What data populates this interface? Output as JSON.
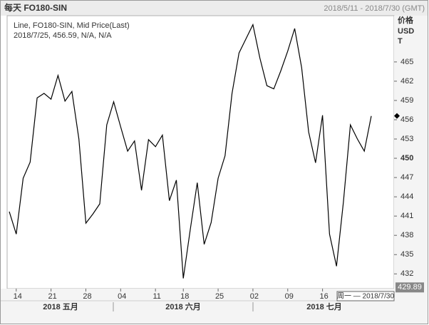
{
  "chart_data": {
    "type": "line",
    "title": "每天 FO180-SIN",
    "date_range": "2018/5/11 - 2018/7/30 (GMT)",
    "legend_line1": "Line, FO180-SIN, Mid Price(Last)",
    "legend_line2": "2018/7/25, 456.59, N/A, N/A",
    "axis_label": [
      "价格",
      "USD",
      "T"
    ],
    "categories": [
      null,
      "14",
      null,
      null,
      null,
      null,
      "21",
      null,
      null,
      null,
      null,
      "28",
      null,
      null,
      null,
      null,
      "04",
      null,
      null,
      null,
      null,
      "11",
      null,
      null,
      null,
      "18",
      null,
      null,
      null,
      null,
      "25",
      null,
      null,
      null,
      null,
      "02",
      null,
      null,
      null,
      null,
      "09",
      null,
      null,
      null,
      null,
      "16",
      null,
      null,
      null,
      null,
      null,
      null,
      null
    ],
    "month_labels": [
      "2018 五月",
      "2018 六月",
      "2018 七月"
    ],
    "series": [
      {
        "name": "FO180-SIN",
        "color": "#000000",
        "values": [
          441.7,
          438.2,
          446.9,
          449.4,
          459.4,
          460.1,
          459.2,
          462.9,
          458.9,
          460.4,
          453.0,
          439.9,
          441.3,
          442.9,
          455.2,
          458.8,
          454.9,
          451.1,
          452.7,
          445.0,
          452.9,
          451.8,
          453.6,
          443.4,
          446.6,
          431.3,
          438.9,
          446.2,
          436.6,
          440.0,
          446.9,
          450.4,
          460.1,
          466.4,
          468.6,
          470.8,
          465.6,
          461.3,
          460.8,
          463.6,
          466.7,
          470.2,
          464.1,
          454.1,
          449.3,
          456.7,
          438.2,
          433.2,
          443.2,
          455.2,
          453.0,
          451.1,
          456.59
        ]
      }
    ],
    "ylim": [
      429.7,
      472.2
    ],
    "yticks": [
      432,
      435,
      438,
      441,
      444,
      447,
      450,
      453,
      456,
      459,
      462,
      465
    ],
    "last_value": 456.59,
    "price_flag": 429.89,
    "cursor_label": "周一 — 2018/7/30"
  }
}
